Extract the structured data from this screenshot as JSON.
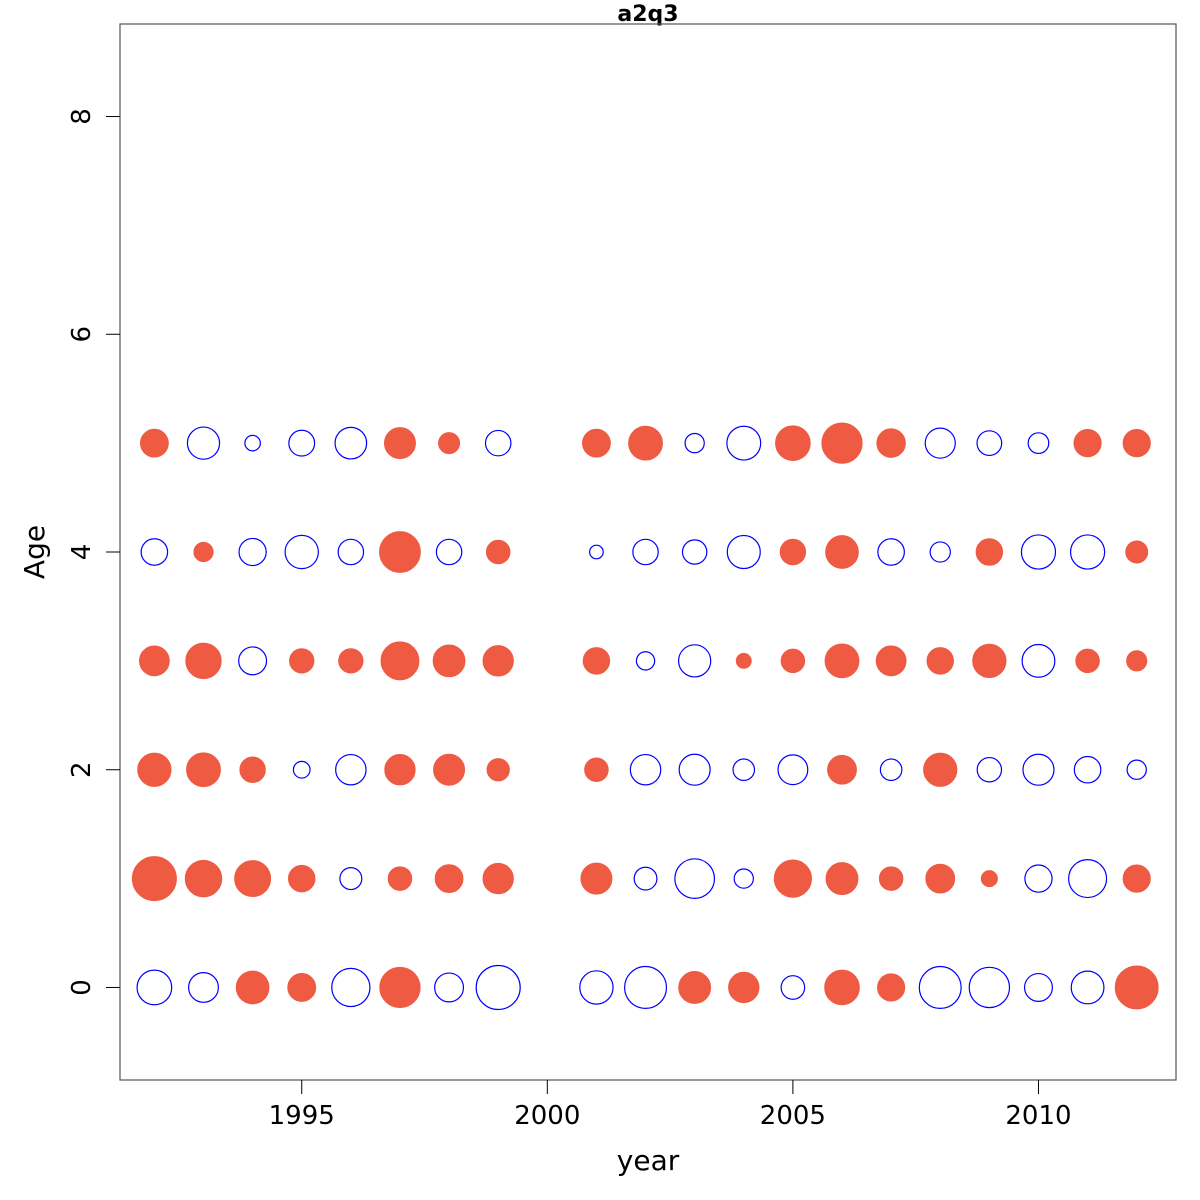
{
  "chart_data": {
    "type": "scatter",
    "subtype": "bubble",
    "title": "a2q3",
    "xlabel": "year",
    "ylabel": "Age",
    "xlim": [
      1991.3,
      2012.8
    ],
    "ylim": [
      -0.85,
      8.85
    ],
    "xticks": [
      1995,
      2000,
      2005,
      2010
    ],
    "yticks": [
      0,
      2,
      4,
      6,
      8
    ],
    "grid": false,
    "colors": {
      "positive": "#ee5a42",
      "negative": "#0000ff"
    },
    "years": [
      1992,
      1993,
      1994,
      1995,
      1996,
      1997,
      1998,
      1999,
      2001,
      2002,
      2003,
      2004,
      2005,
      2006,
      2007,
      2008,
      2009,
      2010,
      2011,
      2012
    ],
    "ages": [
      0,
      1,
      2,
      3,
      4,
      5
    ],
    "size_note": "value = residual magnitude; sign>0 filled red, sign<0 open blue",
    "residuals": {
      "0": [
        -0.65,
        -0.48,
        0.58,
        0.42,
        -0.79,
        0.88,
        -0.45,
        -1.05,
        -0.6,
        -0.95,
        0.55,
        0.5,
        -0.3,
        0.65,
        0.4,
        -0.95,
        -0.88,
        -0.42,
        -0.58,
        1.0
      ],
      "1": [
        1.05,
        0.72,
        0.7,
        0.38,
        -0.26,
        0.3,
        0.42,
        0.5,
        0.52,
        -0.28,
        -0.85,
        -0.2,
        0.75,
        0.55,
        0.3,
        0.45,
        0.14,
        -0.4,
        -0.78,
        0.4
      ],
      "2": [
        0.6,
        0.62,
        0.35,
        -0.15,
        -0.5,
        0.5,
        0.52,
        0.27,
        0.3,
        -0.5,
        -0.52,
        -0.25,
        -0.48,
        0.45,
        -0.25,
        0.6,
        -0.32,
        -0.52,
        -0.38,
        -0.2
      ],
      "3": [
        0.48,
        0.68,
        -0.42,
        0.32,
        0.32,
        0.78,
        0.55,
        0.5,
        0.38,
        -0.18,
        -0.56,
        0.12,
        0.3,
        0.62,
        0.48,
        0.38,
        0.6,
        -0.58,
        0.3,
        0.22
      ],
      "4": [
        -0.38,
        0.2,
        -0.4,
        -0.6,
        -0.35,
        0.9,
        -0.35,
        0.3,
        -0.1,
        -0.35,
        -0.32,
        -0.59,
        0.35,
        0.58,
        -0.38,
        -0.22,
        0.38,
        -0.63,
        -0.63,
        0.26
      ],
      "5": [
        0.42,
        -0.56,
        -0.13,
        -0.36,
        -0.54,
        0.52,
        0.24,
        -0.35,
        0.42,
        0.62,
        -0.2,
        -0.62,
        0.65,
        0.88,
        0.44,
        -0.49,
        -0.33,
        -0.23,
        0.4,
        0.4
      ]
    }
  }
}
